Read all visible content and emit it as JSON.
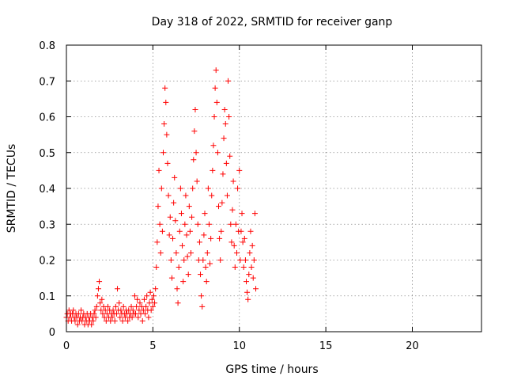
{
  "chart_data": {
    "type": "scatter",
    "title": "Day 318 of 2022, SRMTID for receiver ganp",
    "xlabel": "GPS time / hours",
    "ylabel": "SRMTID / TECUs",
    "xlim": [
      0,
      24
    ],
    "ylim": [
      0,
      0.8
    ],
    "xticks": [
      0,
      5,
      10,
      15,
      20
    ],
    "xtick_labels": [
      "0",
      "5",
      "10",
      "15",
      "20"
    ],
    "yticks": [
      0,
      0.1,
      0.2,
      0.3,
      0.4,
      0.5,
      0.6,
      0.7,
      0.8
    ],
    "ytick_labels": [
      "0",
      "0.1",
      "0.2",
      "0.3",
      "0.4",
      "0.5",
      "0.6",
      "0.7",
      "0.8"
    ],
    "grid": true,
    "marker": "+",
    "color": "#ff0000",
    "series": [
      {
        "name": "SRMTID",
        "points": [
          [
            0.0,
            0.04
          ],
          [
            0.05,
            0.05
          ],
          [
            0.1,
            0.03
          ],
          [
            0.15,
            0.06
          ],
          [
            0.2,
            0.04
          ],
          [
            0.25,
            0.05
          ],
          [
            0.3,
            0.03
          ],
          [
            0.35,
            0.05
          ],
          [
            0.4,
            0.06
          ],
          [
            0.45,
            0.04
          ],
          [
            0.5,
            0.03
          ],
          [
            0.55,
            0.05
          ],
          [
            0.6,
            0.04
          ],
          [
            0.65,
            0.02
          ],
          [
            0.7,
            0.05
          ],
          [
            0.75,
            0.03
          ],
          [
            0.8,
            0.04
          ],
          [
            0.85,
            0.06
          ],
          [
            0.9,
            0.03
          ],
          [
            0.95,
            0.04
          ],
          [
            1.0,
            0.05
          ],
          [
            1.05,
            0.02
          ],
          [
            1.1,
            0.04
          ],
          [
            1.15,
            0.03
          ],
          [
            1.2,
            0.05
          ],
          [
            1.25,
            0.02
          ],
          [
            1.3,
            0.04
          ],
          [
            1.35,
            0.03
          ],
          [
            1.4,
            0.05
          ],
          [
            1.45,
            0.02
          ],
          [
            1.5,
            0.04
          ],
          [
            1.55,
            0.03
          ],
          [
            1.6,
            0.05
          ],
          [
            1.65,
            0.06
          ],
          [
            1.7,
            0.04
          ],
          [
            1.75,
            0.07
          ],
          [
            1.8,
            0.1
          ],
          [
            1.85,
            0.12
          ],
          [
            1.9,
            0.14
          ],
          [
            1.95,
            0.08
          ],
          [
            2.0,
            0.06
          ],
          [
            2.05,
            0.09
          ],
          [
            2.1,
            0.05
          ],
          [
            2.15,
            0.07
          ],
          [
            2.2,
            0.04
          ],
          [
            2.25,
            0.06
          ],
          [
            2.3,
            0.03
          ],
          [
            2.35,
            0.05
          ],
          [
            2.4,
            0.07
          ],
          [
            2.45,
            0.04
          ],
          [
            2.5,
            0.06
          ],
          [
            2.55,
            0.03
          ],
          [
            2.6,
            0.05
          ],
          [
            2.65,
            0.04
          ],
          [
            2.7,
            0.06
          ],
          [
            2.75,
            0.05
          ],
          [
            2.8,
            0.03
          ],
          [
            2.85,
            0.07
          ],
          [
            2.9,
            0.05
          ],
          [
            2.95,
            0.12
          ],
          [
            3.0,
            0.06
          ],
          [
            3.05,
            0.08
          ],
          [
            3.1,
            0.04
          ],
          [
            3.15,
            0.06
          ],
          [
            3.2,
            0.05
          ],
          [
            3.25,
            0.03
          ],
          [
            3.3,
            0.07
          ],
          [
            3.35,
            0.05
          ],
          [
            3.4,
            0.04
          ],
          [
            3.45,
            0.06
          ],
          [
            3.5,
            0.05
          ],
          [
            3.55,
            0.03
          ],
          [
            3.6,
            0.06
          ],
          [
            3.65,
            0.04
          ],
          [
            3.7,
            0.05
          ],
          [
            3.75,
            0.07
          ],
          [
            3.8,
            0.04
          ],
          [
            3.85,
            0.06
          ],
          [
            3.9,
            0.05
          ],
          [
            3.95,
            0.1
          ],
          [
            4.0,
            0.05
          ],
          [
            4.05,
            0.07
          ],
          [
            4.1,
            0.09
          ],
          [
            4.15,
            0.04
          ],
          [
            4.2,
            0.06
          ],
          [
            4.25,
            0.08
          ],
          [
            4.3,
            0.05
          ],
          [
            4.35,
            0.07
          ],
          [
            4.4,
            0.03
          ],
          [
            4.45,
            0.06
          ],
          [
            4.5,
            0.09
          ],
          [
            4.55,
            0.05
          ],
          [
            4.6,
            0.07
          ],
          [
            4.65,
            0.1
          ],
          [
            4.7,
            0.06
          ],
          [
            4.75,
            0.04
          ],
          [
            4.8,
            0.08
          ],
          [
            4.85,
            0.11
          ],
          [
            4.9,
            0.06
          ],
          [
            4.95,
            0.09
          ],
          [
            5.0,
            0.07
          ],
          [
            5.05,
            0.1
          ],
          [
            5.1,
            0.08
          ],
          [
            5.15,
            0.12
          ],
          [
            5.2,
            0.18
          ],
          [
            5.25,
            0.25
          ],
          [
            5.3,
            0.35
          ],
          [
            5.35,
            0.45
          ],
          [
            5.4,
            0.3
          ],
          [
            5.45,
            0.22
          ],
          [
            5.5,
            0.4
          ],
          [
            5.55,
            0.28
          ],
          [
            5.6,
            0.5
          ],
          [
            5.65,
            0.58
          ],
          [
            5.7,
            0.68
          ],
          [
            5.75,
            0.64
          ],
          [
            5.8,
            0.55
          ],
          [
            5.85,
            0.47
          ],
          [
            5.9,
            0.38
          ],
          [
            5.95,
            0.27
          ],
          [
            6.0,
            0.32
          ],
          [
            6.05,
            0.2
          ],
          [
            6.1,
            0.15
          ],
          [
            6.15,
            0.26
          ],
          [
            6.2,
            0.36
          ],
          [
            6.25,
            0.43
          ],
          [
            6.3,
            0.31
          ],
          [
            6.35,
            0.22
          ],
          [
            6.4,
            0.12
          ],
          [
            6.45,
            0.08
          ],
          [
            6.5,
            0.18
          ],
          [
            6.55,
            0.28
          ],
          [
            6.6,
            0.4
          ],
          [
            6.65,
            0.33
          ],
          [
            6.7,
            0.24
          ],
          [
            6.75,
            0.14
          ],
          [
            6.8,
            0.2
          ],
          [
            6.85,
            0.3
          ],
          [
            6.9,
            0.38
          ],
          [
            6.95,
            0.27
          ],
          [
            7.0,
            0.21
          ],
          [
            7.05,
            0.16
          ],
          [
            7.1,
            0.35
          ],
          [
            7.15,
            0.28
          ],
          [
            7.2,
            0.22
          ],
          [
            7.25,
            0.32
          ],
          [
            7.3,
            0.4
          ],
          [
            7.35,
            0.48
          ],
          [
            7.4,
            0.56
          ],
          [
            7.45,
            0.62
          ],
          [
            7.5,
            0.5
          ],
          [
            7.55,
            0.42
          ],
          [
            7.6,
            0.3
          ],
          [
            7.65,
            0.2
          ],
          [
            7.7,
            0.25
          ],
          [
            7.75,
            0.16
          ],
          [
            7.8,
            0.1
          ],
          [
            7.85,
            0.07
          ],
          [
            7.9,
            0.2
          ],
          [
            7.95,
            0.27
          ],
          [
            8.0,
            0.33
          ],
          [
            8.05,
            0.18
          ],
          [
            8.1,
            0.14
          ],
          [
            8.15,
            0.22
          ],
          [
            8.2,
            0.4
          ],
          [
            8.25,
            0.3
          ],
          [
            8.3,
            0.19
          ],
          [
            8.35,
            0.26
          ],
          [
            8.4,
            0.38
          ],
          [
            8.45,
            0.45
          ],
          [
            8.5,
            0.52
          ],
          [
            8.55,
            0.6
          ],
          [
            8.6,
            0.68
          ],
          [
            8.65,
            0.73
          ],
          [
            8.7,
            0.64
          ],
          [
            8.75,
            0.5
          ],
          [
            8.8,
            0.35
          ],
          [
            8.85,
            0.26
          ],
          [
            8.9,
            0.2
          ],
          [
            8.95,
            0.28
          ],
          [
            9.0,
            0.36
          ],
          [
            9.05,
            0.44
          ],
          [
            9.1,
            0.54
          ],
          [
            9.15,
            0.62
          ],
          [
            9.2,
            0.58
          ],
          [
            9.25,
            0.47
          ],
          [
            9.3,
            0.38
          ],
          [
            9.35,
            0.7
          ],
          [
            9.4,
            0.6
          ],
          [
            9.45,
            0.49
          ],
          [
            9.5,
            0.3
          ],
          [
            9.55,
            0.25
          ],
          [
            9.6,
            0.34
          ],
          [
            9.65,
            0.42
          ],
          [
            9.7,
            0.24
          ],
          [
            9.75,
            0.18
          ],
          [
            9.8,
            0.3
          ],
          [
            9.85,
            0.22
          ],
          [
            9.9,
            0.4
          ],
          [
            9.95,
            0.28
          ],
          [
            10.0,
            0.45
          ],
          [
            10.05,
            0.2
          ],
          [
            10.1,
            0.28
          ],
          [
            10.15,
            0.33
          ],
          [
            10.2,
            0.25
          ],
          [
            10.25,
            0.18
          ],
          [
            10.3,
            0.26
          ],
          [
            10.35,
            0.2
          ],
          [
            10.4,
            0.14
          ],
          [
            10.45,
            0.11
          ],
          [
            10.5,
            0.09
          ],
          [
            10.55,
            0.16
          ],
          [
            10.6,
            0.22
          ],
          [
            10.65,
            0.28
          ],
          [
            10.7,
            0.18
          ],
          [
            10.75,
            0.24
          ],
          [
            10.8,
            0.15
          ],
          [
            10.85,
            0.2
          ],
          [
            10.9,
            0.33
          ],
          [
            10.95,
            0.12
          ]
        ]
      }
    ]
  }
}
